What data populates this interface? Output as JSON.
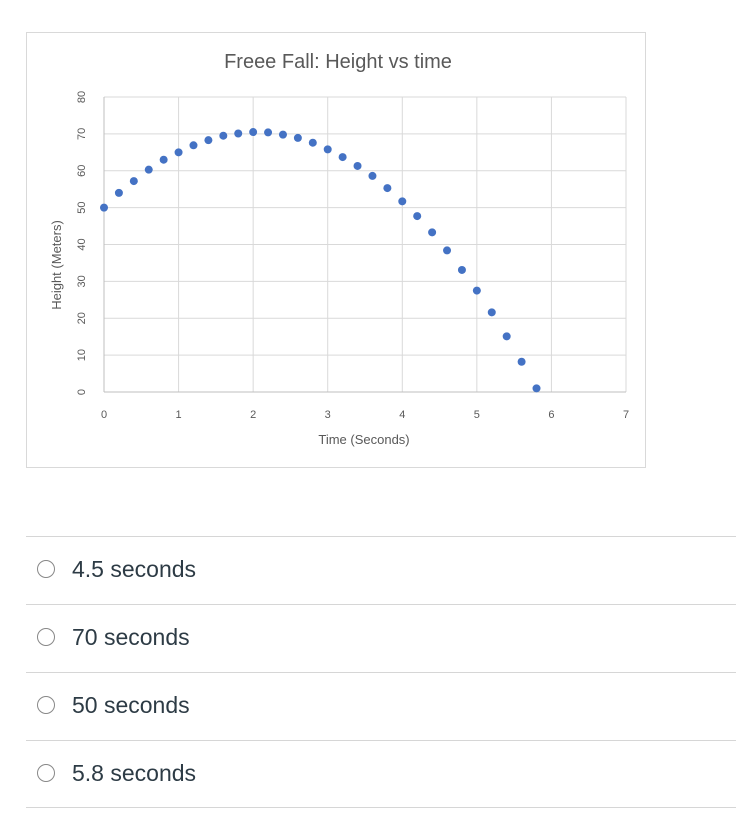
{
  "chart_data": {
    "type": "scatter",
    "title": "Freee Fall: Height vs time",
    "xlabel": "Time (Seconds)",
    "ylabel": "Height (Meters)",
    "xlim": [
      0,
      7
    ],
    "ylim": [
      0,
      80
    ],
    "xticks": [
      "0",
      "1",
      "2",
      "3",
      "4",
      "5",
      "6",
      "7"
    ],
    "yticks": [
      "0",
      "10",
      "20",
      "30",
      "40",
      "50",
      "60",
      "70",
      "80"
    ],
    "grid": true,
    "color": "#4472c4",
    "x": [
      0,
      0.2,
      0.4,
      0.6,
      0.8,
      1.0,
      1.2,
      1.4,
      1.6,
      1.8,
      2.0,
      2.2,
      2.4,
      2.6,
      2.8,
      3.0,
      3.2,
      3.4,
      3.6,
      3.8,
      4.0,
      4.2,
      4.4,
      4.6,
      4.8,
      5.0,
      5.2,
      5.4,
      5.6,
      5.8
    ],
    "y": [
      50,
      54,
      57.2,
      60.3,
      63,
      65,
      66.9,
      68.3,
      69.5,
      70.1,
      70.5,
      70.4,
      69.8,
      68.9,
      67.6,
      65.8,
      63.7,
      61.3,
      58.6,
      55.3,
      51.7,
      47.7,
      43.3,
      38.4,
      33.1,
      27.5,
      21.6,
      15.1,
      8.2,
      1
    ]
  },
  "options": [
    {
      "label": "4.5 seconds"
    },
    {
      "label": "70 seconds"
    },
    {
      "label": "50 seconds"
    },
    {
      "label": "5.8 seconds"
    }
  ]
}
